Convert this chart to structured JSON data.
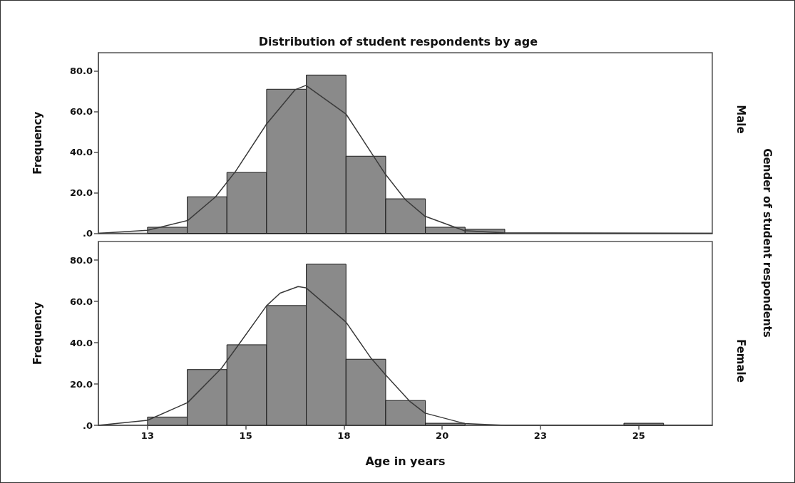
{
  "chart_data": [
    {
      "type": "histogram",
      "title": "Distribution of student respondents by age",
      "ylabel": "Frequency",
      "annotations": [
        "Male",
        "Gender of student respondents"
      ],
      "bins": [
        13,
        13.97,
        14.94,
        15.91,
        16.88,
        17.85,
        18.82,
        19.79,
        20.76,
        21.73,
        22.7,
        23.67,
        24.64,
        25.61
      ],
      "series": [
        {
          "color": "#8a8a8a",
          "values": [
            3,
            18,
            30,
            71,
            78,
            38,
            17,
            3,
            2,
            0,
            0,
            0,
            0
          ]
        },
        {
          "type": "line",
          "color": "#3a3a3a",
          "x": [
            11.8,
            13,
            13.98,
            14.66,
            15.15,
            15.91,
            16.61,
            16.87,
            17.85,
            18.51,
            18.81,
            19.3,
            19.78,
            20.74,
            21.74,
            26.8
          ],
          "values": [
            0,
            1.5,
            6.3,
            17.9,
            30.5,
            53.9,
            70.8,
            72.9,
            58.8,
            38.4,
            29.2,
            16.6,
            8.4,
            1.3,
            0.2,
            0
          ]
        }
      ],
      "xlim": [
        11.8,
        26.8
      ],
      "ylim": [
        0,
        89
      ],
      "yticks": [
        {
          "value": 0,
          "label": ".0"
        },
        {
          "value": 20,
          "label": "20.0"
        },
        {
          "value": 40,
          "label": "40.0"
        },
        {
          "value": 60,
          "label": "60.0"
        },
        {
          "value": 80,
          "label": "80.0"
        }
      ],
      "tick_labels": "y",
      "grid": false,
      "marker": "none"
    },
    {
      "type": "histogram",
      "xlabel": "Age in years",
      "ylabel": "Frequency",
      "annotations": [
        "Female"
      ],
      "bins": [
        13,
        13.97,
        14.94,
        15.91,
        16.88,
        17.85,
        18.82,
        19.79,
        20.76,
        21.73,
        22.7,
        23.67,
        24.64,
        25.61
      ],
      "series": [
        {
          "color": "#8a8a8a",
          "values": [
            4,
            27,
            39,
            58,
            78,
            32,
            12,
            1,
            0,
            0,
            0,
            0,
            1
          ]
        },
        {
          "type": "line",
          "color": "#3a3a3a",
          "x": [
            11.8,
            13,
            13.98,
            14.81,
            15.24,
            15.91,
            16.24,
            16.68,
            16.87,
            17.85,
            18.45,
            18.81,
            19.42,
            19.78,
            20.74,
            21.74,
            26.8
          ],
          "values": [
            0,
            2.4,
            11,
            27.7,
            39.4,
            57.9,
            64,
            67.2,
            66.6,
            50,
            32.8,
            24.6,
            11.4,
            5.9,
            0.9,
            0,
            0
          ]
        }
      ],
      "xlim": [
        11.8,
        26.8
      ],
      "xticks": [
        13,
        {
          "value": 15.4,
          "label": "15"
        },
        {
          "value": 17.8,
          "label": "18"
        },
        {
          "value": 20.2,
          "label": "20"
        },
        {
          "value": 22.6,
          "label": "23"
        },
        25
      ],
      "ylim": [
        0,
        89
      ],
      "yticks": [
        {
          "value": 0,
          "label": ".0"
        },
        {
          "value": 20,
          "label": "20.0"
        },
        {
          "value": 40,
          "label": "40.0"
        },
        {
          "value": 60,
          "label": "60.0"
        },
        {
          "value": 80,
          "label": "80.0"
        }
      ],
      "grid": false,
      "marker": "none"
    }
  ]
}
